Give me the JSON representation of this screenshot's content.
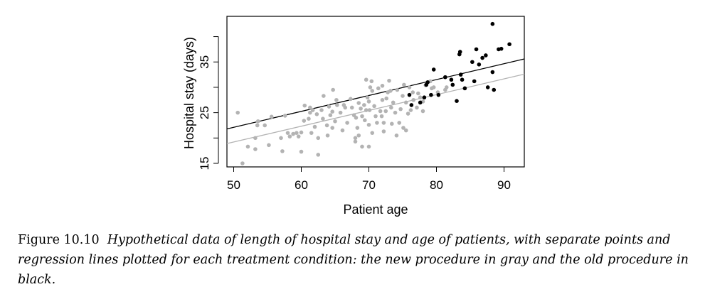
{
  "chart_data": {
    "type": "scatter",
    "xlabel": "Patient age",
    "ylabel": "Hospital stay (days)",
    "xlim": [
      49,
      93
    ],
    "ylim": [
      14.3,
      44
    ],
    "xticks": [
      50,
      60,
      70,
      80,
      90
    ],
    "yticks": [
      15,
      25,
      35
    ],
    "yticks_unlabeled": [
      20,
      30,
      40
    ],
    "series": [
      {
        "color": "#b3b3b3",
        "points": [
          [
            50.6,
            25.0
          ],
          [
            51.3,
            15.0
          ],
          [
            52.1,
            18.3
          ],
          [
            53.2,
            17.8
          ],
          [
            53.2,
            20.0
          ],
          [
            53.5,
            22.5
          ],
          [
            53.6,
            23.3
          ],
          [
            54.6,
            22.5
          ],
          [
            55.2,
            18.6
          ],
          [
            55.6,
            24.2
          ],
          [
            57.0,
            20.0
          ],
          [
            57.2,
            17.4
          ],
          [
            57.6,
            24.4
          ],
          [
            58.0,
            21.0
          ],
          [
            58.3,
            20.3
          ],
          [
            58.8,
            20.8
          ],
          [
            59.3,
            21.0
          ],
          [
            59.6,
            20.3
          ],
          [
            60.0,
            21.1
          ],
          [
            60.0,
            17.3
          ],
          [
            60.4,
            23.4
          ],
          [
            60.5,
            26.4
          ],
          [
            61.1,
            23.8
          ],
          [
            61.3,
            25.0
          ],
          [
            61.3,
            26.0
          ],
          [
            61.5,
            21.0
          ],
          [
            61.7,
            25.5
          ],
          [
            62.0,
            22.2
          ],
          [
            62.3,
            24.7
          ],
          [
            62.5,
            20.0
          ],
          [
            62.5,
            16.7
          ],
          [
            63.0,
            25.5
          ],
          [
            63.2,
            23.8
          ],
          [
            63.3,
            28.3
          ],
          [
            63.8,
            22.5
          ],
          [
            63.9,
            20.5
          ],
          [
            64.1,
            26.2
          ],
          [
            64.3,
            24.5
          ],
          [
            64.6,
            25.2
          ],
          [
            64.6,
            22.0
          ],
          [
            64.7,
            29.5
          ],
          [
            65.0,
            23.3
          ],
          [
            65.2,
            27.5
          ],
          [
            65.3,
            26.5
          ],
          [
            65.8,
            25.0
          ],
          [
            66.1,
            21.5
          ],
          [
            66.3,
            26.5
          ],
          [
            66.5,
            26.0
          ],
          [
            66.8,
            23.0
          ],
          [
            67.3,
            27.7
          ],
          [
            67.5,
            26.0
          ],
          [
            67.8,
            24.5
          ],
          [
            68.0,
            20.0
          ],
          [
            68.0,
            19.3
          ],
          [
            68.1,
            24.0
          ],
          [
            68.3,
            22.0
          ],
          [
            68.5,
            20.5
          ],
          [
            68.5,
            26.9
          ],
          [
            68.8,
            25.8
          ],
          [
            69.0,
            24.3
          ],
          [
            69.0,
            18.3
          ],
          [
            69.3,
            26.5
          ],
          [
            69.4,
            23.5
          ],
          [
            69.6,
            25.5
          ],
          [
            69.6,
            31.5
          ],
          [
            69.8,
            28.0
          ],
          [
            70.0,
            27.2
          ],
          [
            70.0,
            22.6
          ],
          [
            70.0,
            18.3
          ],
          [
            70.1,
            25.5
          ],
          [
            70.2,
            30.0
          ],
          [
            70.4,
            31.2
          ],
          [
            70.5,
            29.3
          ],
          [
            70.5,
            21.0
          ],
          [
            70.8,
            26.3
          ],
          [
            71.0,
            24.3
          ],
          [
            71.2,
            23.0
          ],
          [
            71.4,
            29.8
          ],
          [
            71.7,
            25.3
          ],
          [
            71.9,
            24.3
          ],
          [
            72.0,
            27.5
          ],
          [
            72.0,
            30.3
          ],
          [
            72.2,
            23.0
          ],
          [
            72.2,
            21.3
          ],
          [
            72.5,
            25.3
          ],
          [
            72.6,
            27.8
          ],
          [
            72.8,
            29.0
          ],
          [
            73.0,
            31.3
          ],
          [
            73.2,
            29.3
          ],
          [
            73.3,
            26.0
          ],
          [
            73.4,
            22.8
          ],
          [
            73.6,
            27.0
          ],
          [
            73.9,
            25.0
          ],
          [
            74.1,
            20.5
          ],
          [
            74.2,
            29.5
          ],
          [
            74.5,
            23.0
          ],
          [
            74.7,
            25.7
          ],
          [
            75.0,
            28.3
          ],
          [
            75.1,
            22.0
          ],
          [
            75.2,
            30.5
          ],
          [
            75.5,
            21.5
          ],
          [
            75.5,
            27.0
          ],
          [
            75.8,
            24.8
          ],
          [
            76.0,
            30.0
          ],
          [
            76.2,
            25.5
          ],
          [
            76.5,
            29.0
          ],
          [
            76.6,
            27.5
          ],
          [
            77.1,
            26.0
          ],
          [
            77.3,
            28.8
          ],
          [
            77.6,
            28.0
          ],
          [
            78.0,
            27.2
          ],
          [
            78.0,
            25.3
          ],
          [
            78.4,
            30.4
          ],
          [
            79.1,
            31.2
          ],
          [
            79.3,
            29.8
          ],
          [
            79.6,
            30.0
          ],
          [
            80.2,
            29.0
          ],
          [
            81.3,
            29.5
          ],
          [
            81.5,
            30.0
          ]
        ]
      },
      {
        "color": "#000000",
        "points": [
          [
            76.0,
            28.5
          ],
          [
            76.3,
            26.5
          ],
          [
            77.6,
            27.0
          ],
          [
            78.2,
            28.0
          ],
          [
            78.5,
            30.5
          ],
          [
            78.7,
            31.0
          ],
          [
            79.2,
            28.5
          ],
          [
            79.6,
            33.5
          ],
          [
            80.3,
            28.5
          ],
          [
            81.3,
            32.0
          ],
          [
            82.2,
            31.5
          ],
          [
            82.4,
            30.5
          ],
          [
            83.0,
            27.3
          ],
          [
            83.4,
            36.5
          ],
          [
            83.5,
            37.0
          ],
          [
            83.6,
            32.5
          ],
          [
            83.8,
            31.5
          ],
          [
            84.2,
            29.8
          ],
          [
            85.3,
            35.0
          ],
          [
            85.6,
            31.2
          ],
          [
            85.9,
            37.5
          ],
          [
            86.3,
            34.5
          ],
          [
            86.8,
            35.8
          ],
          [
            87.3,
            36.3
          ],
          [
            87.6,
            30.0
          ],
          [
            88.3,
            33.0
          ],
          [
            88.3,
            42.5
          ],
          [
            88.5,
            29.5
          ],
          [
            89.2,
            37.5
          ],
          [
            89.6,
            37.6
          ],
          [
            90.8,
            38.5
          ]
        ]
      }
    ],
    "regression_lines": [
      {
        "color": "#000000",
        "x": [
          49,
          93
        ],
        "y": [
          21.8,
          35.6
        ]
      },
      {
        "color": "#b3b3b3",
        "x": [
          49,
          93
        ],
        "y": [
          18.9,
          32.6
        ]
      }
    ]
  },
  "caption": {
    "label": "Figure 10.10",
    "text": "Hypothetical data of length of hospital stay and age of patients, with separate points and regression lines plotted for each treatment condition: the new procedure in gray and the old procedure in black."
  }
}
